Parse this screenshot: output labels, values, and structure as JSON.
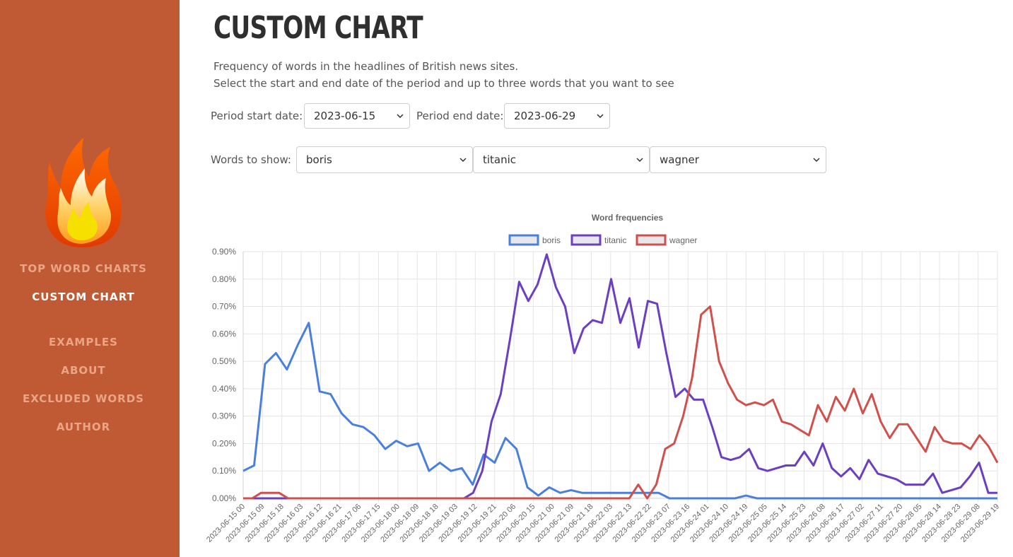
{
  "nav": {
    "items": [
      {
        "label": "TOP WORD CHARTS",
        "active": false
      },
      {
        "label": "CUSTOM CHART",
        "active": true
      },
      {
        "label": "EXAMPLES",
        "active": false
      },
      {
        "label": "ABOUT",
        "active": false
      },
      {
        "label": "EXCLUDED WORDS",
        "active": false
      },
      {
        "label": "AUTHOR",
        "active": false
      }
    ]
  },
  "page": {
    "title": "CUSTOM CHART",
    "description_line1": "Frequency of words in the headlines of British news sites.",
    "description_line2": "Select the start and end date of the period and up to three words that you want to see"
  },
  "controls": {
    "start_label": "Period start date:",
    "start_value": "2023-06-15",
    "end_label": "Period end date:",
    "end_value": "2023-06-29",
    "words_label": "Words to show:",
    "word1": "boris",
    "word2": "titanic",
    "word3": "wagner"
  },
  "colors": {
    "sidebar": "#c05a35",
    "boris": "#4a7fde",
    "titanic": "#6b3fc2",
    "wagner": "#d0504b"
  },
  "chart_data": {
    "type": "line",
    "title": "Word frequencies",
    "ylim": [
      0,
      0.9
    ],
    "y_ticks": [
      "0.00%",
      "0.10%",
      "0.20%",
      "0.30%",
      "0.40%",
      "0.50%",
      "0.60%",
      "0.70%",
      "0.80%",
      "0.90%"
    ],
    "grid": true,
    "legend": "top-center",
    "x_labels": [
      "2023-06-15 00",
      "2023-06-15 09",
      "2023-06-15 18",
      "2023-06-16 03",
      "2023-06-16 12",
      "2023-06-16 21",
      "2023-06-17 06",
      "2023-06-17 15",
      "2023-06-18 00",
      "2023-06-18 09",
      "2023-06-18 18",
      "2023-06-19 03",
      "2023-06-19 12",
      "2023-06-19 21",
      "2023-06-20 06",
      "2023-06-20 15",
      "2023-06-21 00",
      "2023-06-21 09",
      "2023-06-21 18",
      "2023-06-22 03",
      "2023-06-22 13",
      "2023-06-22 22",
      "2023-06-23 07",
      "2023-06-23 16",
      "2023-06-24 01",
      "2023-06-24 10",
      "2023-06-24 19",
      "2023-06-25 05",
      "2023-06-25 14",
      "2023-06-25 23",
      "2023-06-26 08",
      "2023-06-26 17",
      "2023-06-27 02",
      "2023-06-27 11",
      "2023-06-27 20",
      "2023-06-28 05",
      "2023-06-28 14",
      "2023-06-28 23",
      "2023-06-29 08",
      "2023-06-29 19"
    ],
    "series": [
      {
        "name": "boris",
        "color": "#4a7fde",
        "values": [
          0.1,
          0.12,
          0.49,
          0.53,
          0.47,
          0.56,
          0.64,
          0.39,
          0.38,
          0.31,
          0.27,
          0.26,
          0.23,
          0.18,
          0.21,
          0.19,
          0.2,
          0.1,
          0.13,
          0.1,
          0.11,
          0.05,
          0.16,
          0.13,
          0.22,
          0.18,
          0.04,
          0.01,
          0.04,
          0.02,
          0.03,
          0.02,
          0.02,
          0.02,
          0.02,
          0.02,
          0.02,
          0.02,
          0.02,
          0.0,
          0.0,
          0.0,
          0.0,
          0.0,
          0.0,
          0.0,
          0.01,
          0.0,
          0.0,
          0.0,
          0.0,
          0.0,
          0.0,
          0.0,
          0.0,
          0.0,
          0.0,
          0.0,
          0.0,
          0.0,
          0.0,
          0.0,
          0.0,
          0.0,
          0.0,
          0.0,
          0.0,
          0.0,
          0.0,
          0.0
        ]
      },
      {
        "name": "titanic",
        "color": "#6b3fc2",
        "values": [
          0.0,
          0.0,
          0.0,
          0.0,
          0.0,
          0.0,
          0.0,
          0.0,
          0.0,
          0.0,
          0.0,
          0.0,
          0.0,
          0.0,
          0.0,
          0.0,
          0.0,
          0.0,
          0.0,
          0.0,
          0.0,
          0.0,
          0.0,
          0.0,
          0.0,
          0.02,
          0.1,
          0.28,
          0.38,
          0.58,
          0.79,
          0.72,
          0.78,
          0.89,
          0.77,
          0.7,
          0.53,
          0.62,
          0.65,
          0.64,
          0.8,
          0.64,
          0.73,
          0.55,
          0.72,
          0.71,
          0.53,
          0.37,
          0.4,
          0.36,
          0.36,
          0.26,
          0.15,
          0.14,
          0.15,
          0.18,
          0.11,
          0.1,
          0.11,
          0.12,
          0.12,
          0.17,
          0.12,
          0.2,
          0.11,
          0.08,
          0.11,
          0.07,
          0.14,
          0.09,
          0.08,
          0.07,
          0.05,
          0.05,
          0.05,
          0.09,
          0.02,
          0.03,
          0.04,
          0.08,
          0.13,
          0.02,
          0.02
        ]
      },
      {
        "name": "wagner",
        "color": "#d0504b",
        "values": [
          0.0,
          0.0,
          0.02,
          0.02,
          0.02,
          0.0,
          0.0,
          0.0,
          0.0,
          0.0,
          0.0,
          0.0,
          0.0,
          0.0,
          0.0,
          0.0,
          0.0,
          0.0,
          0.0,
          0.0,
          0.0,
          0.0,
          0.0,
          0.0,
          0.0,
          0.0,
          0.0,
          0.0,
          0.0,
          0.0,
          0.0,
          0.0,
          0.0,
          0.0,
          0.0,
          0.0,
          0.0,
          0.0,
          0.0,
          0.0,
          0.0,
          0.0,
          0.0,
          0.0,
          0.05,
          0.0,
          0.05,
          0.18,
          0.2,
          0.3,
          0.44,
          0.67,
          0.7,
          0.5,
          0.42,
          0.36,
          0.34,
          0.35,
          0.34,
          0.36,
          0.28,
          0.27,
          0.25,
          0.23,
          0.34,
          0.28,
          0.37,
          0.32,
          0.4,
          0.31,
          0.38,
          0.28,
          0.22,
          0.27,
          0.27,
          0.22,
          0.17,
          0.26,
          0.21,
          0.2,
          0.2,
          0.18,
          0.23,
          0.19,
          0.13
        ]
      }
    ]
  }
}
